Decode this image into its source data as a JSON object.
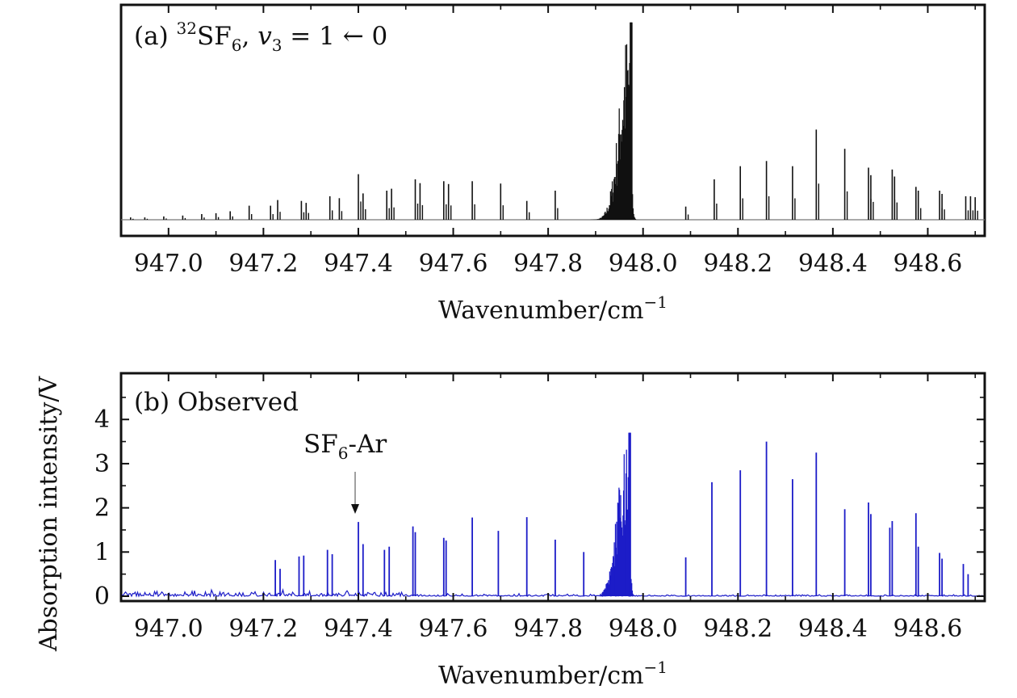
{
  "chart_data": [
    {
      "panel": "a",
      "type": "line",
      "panel_label": "(a) ",
      "label_iso_sup": "32",
      "label_species": "SF",
      "label_species_sub": "6",
      "label_sep": ", ",
      "label_mode": "v",
      "label_mode_sub": "3",
      "label_transition": " = 1 ← 0",
      "xlabel": "Wavenumber/cm",
      "xlabel_sup": "−1",
      "xlim": [
        946.9,
        948.72
      ],
      "ylim": [
        0,
        4.3
      ],
      "x_ticks": [
        947.0,
        947.2,
        947.4,
        947.6,
        947.8,
        948.0,
        948.2,
        948.4,
        948.6
      ],
      "x_tick_labels": [
        "947.0",
        "947.2",
        "947.4",
        "947.6",
        "947.8",
        "948.0",
        "948.2",
        "948.4",
        "948.6"
      ],
      "y_tick_labels_shown": false,
      "line_color": "#111111",
      "q_branch": {
        "center": 947.975,
        "peak": 4.2
      },
      "lines": [
        {
          "x": 946.92,
          "y": 0.05
        },
        {
          "x": 946.95,
          "y": 0.05
        },
        {
          "x": 946.99,
          "y": 0.07
        },
        {
          "x": 947.03,
          "y": 0.09
        },
        {
          "x": 947.07,
          "y": 0.12
        },
        {
          "x": 947.1,
          "y": 0.14
        },
        {
          "x": 947.13,
          "y": 0.18
        },
        {
          "x": 947.17,
          "y": 0.3
        },
        {
          "x": 947.215,
          "y": 0.3
        },
        {
          "x": 947.23,
          "y": 0.42
        },
        {
          "x": 947.28,
          "y": 0.4
        },
        {
          "x": 947.29,
          "y": 0.36
        },
        {
          "x": 947.34,
          "y": 0.5
        },
        {
          "x": 947.36,
          "y": 0.46
        },
        {
          "x": 947.4,
          "y": 0.97
        },
        {
          "x": 947.41,
          "y": 0.56
        },
        {
          "x": 947.46,
          "y": 0.62
        },
        {
          "x": 947.47,
          "y": 0.66
        },
        {
          "x": 947.52,
          "y": 0.86
        },
        {
          "x": 947.53,
          "y": 0.78
        },
        {
          "x": 947.58,
          "y": 0.82
        },
        {
          "x": 947.59,
          "y": 0.76
        },
        {
          "x": 947.64,
          "y": 0.82
        },
        {
          "x": 947.7,
          "y": 0.77
        },
        {
          "x": 947.755,
          "y": 0.4
        },
        {
          "x": 947.815,
          "y": 0.62
        },
        {
          "x": 948.09,
          "y": 0.28
        },
        {
          "x": 948.15,
          "y": 0.86
        },
        {
          "x": 948.205,
          "y": 1.14
        },
        {
          "x": 948.26,
          "y": 1.25
        },
        {
          "x": 948.315,
          "y": 1.14
        },
        {
          "x": 948.365,
          "y": 1.92
        },
        {
          "x": 948.425,
          "y": 1.51
        },
        {
          "x": 948.475,
          "y": 1.11
        },
        {
          "x": 948.48,
          "y": 0.95
        },
        {
          "x": 948.525,
          "y": 1.07
        },
        {
          "x": 948.53,
          "y": 0.92
        },
        {
          "x": 948.575,
          "y": 0.7
        },
        {
          "x": 948.58,
          "y": 0.62
        },
        {
          "x": 948.625,
          "y": 0.62
        },
        {
          "x": 948.63,
          "y": 0.55
        },
        {
          "x": 948.68,
          "y": 0.5
        },
        {
          "x": 948.69,
          "y": 0.5
        },
        {
          "x": 948.7,
          "y": 0.48
        }
      ]
    },
    {
      "panel": "b",
      "type": "line",
      "panel_label": "(b) Observed",
      "annotation_species": "SF",
      "annotation_species_sub": "6",
      "annotation_suffix": "-Ar",
      "annotation_x": 947.39,
      "xlabel": "Wavenumber/cm",
      "xlabel_sup": "−1",
      "ylabel": "Absorption intensity/V",
      "xlim": [
        946.9,
        948.72
      ],
      "ylim": [
        0,
        4.9
      ],
      "x_ticks": [
        947.0,
        947.2,
        947.4,
        947.6,
        947.8,
        948.0,
        948.2,
        948.4,
        948.6
      ],
      "x_tick_labels": [
        "947.0",
        "947.2",
        "947.4",
        "947.6",
        "947.8",
        "948.0",
        "948.2",
        "948.4",
        "948.6"
      ],
      "y_ticks": [
        0,
        1,
        2,
        3,
        4
      ],
      "y_tick_labels": [
        "0",
        "1",
        "2",
        "3",
        "4"
      ],
      "line_color": "#1c1cc8",
      "noise_level": 0.15,
      "q_branch": {
        "center": 947.972,
        "peak": 3.7
      },
      "lines": [
        {
          "x": 947.225,
          "y": 0.82
        },
        {
          "x": 947.235,
          "y": 0.62
        },
        {
          "x": 947.275,
          "y": 0.9
        },
        {
          "x": 947.285,
          "y": 0.92
        },
        {
          "x": 947.335,
          "y": 1.05
        },
        {
          "x": 947.345,
          "y": 0.95
        },
        {
          "x": 947.4,
          "y": 1.68
        },
        {
          "x": 947.41,
          "y": 1.18
        },
        {
          "x": 947.455,
          "y": 1.05
        },
        {
          "x": 947.465,
          "y": 1.12
        },
        {
          "x": 947.515,
          "y": 1.58
        },
        {
          "x": 947.52,
          "y": 1.45
        },
        {
          "x": 947.58,
          "y": 1.32
        },
        {
          "x": 947.585,
          "y": 1.26
        },
        {
          "x": 947.64,
          "y": 1.78
        },
        {
          "x": 947.695,
          "y": 1.48
        },
        {
          "x": 947.755,
          "y": 1.79
        },
        {
          "x": 947.815,
          "y": 1.28
        },
        {
          "x": 947.875,
          "y": 1.0
        },
        {
          "x": 948.09,
          "y": 0.88
        },
        {
          "x": 948.145,
          "y": 2.58
        },
        {
          "x": 948.205,
          "y": 2.85
        },
        {
          "x": 948.26,
          "y": 3.5
        },
        {
          "x": 948.315,
          "y": 2.65
        },
        {
          "x": 948.365,
          "y": 3.25
        },
        {
          "x": 948.425,
          "y": 1.97
        },
        {
          "x": 948.475,
          "y": 2.12
        },
        {
          "x": 948.48,
          "y": 1.86
        },
        {
          "x": 948.52,
          "y": 1.55
        },
        {
          "x": 948.525,
          "y": 1.7
        },
        {
          "x": 948.575,
          "y": 1.88
        },
        {
          "x": 948.58,
          "y": 1.12
        },
        {
          "x": 948.625,
          "y": 0.98
        },
        {
          "x": 948.63,
          "y": 0.85
        },
        {
          "x": 948.675,
          "y": 0.73
        },
        {
          "x": 948.685,
          "y": 0.5
        }
      ]
    }
  ]
}
